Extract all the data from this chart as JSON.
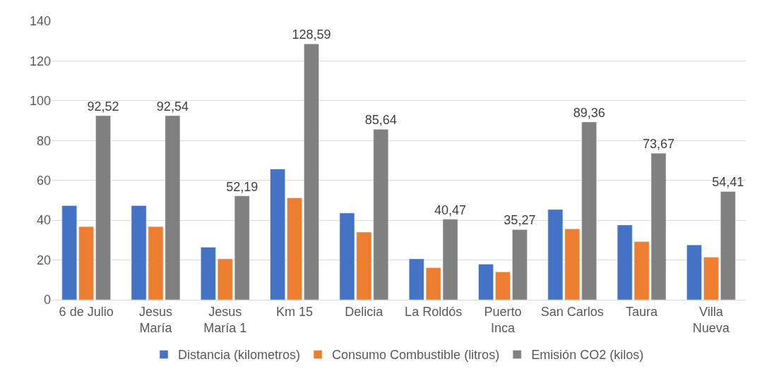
{
  "chart_data": {
    "type": "bar",
    "categories": [
      "6 de Julio",
      "Jesus María",
      "Jesus María 1",
      "Km 15",
      "Delicia",
      "La Roldós",
      "Puerto Inca",
      "San Carlos",
      "Taura",
      "Villa Nueva"
    ],
    "series": [
      {
        "name": "Distancia (kilometros)",
        "color": "#4472c4",
        "values": [
          47.3,
          47.3,
          26.4,
          65.7,
          43.6,
          20.6,
          17.9,
          45.4,
          37.6,
          27.6
        ]
      },
      {
        "name": "Consumo Combustible (litros)",
        "color": "#ed7d31",
        "values": [
          36.8,
          36.8,
          20.6,
          51.2,
          34.0,
          16.1,
          14.0,
          35.6,
          29.2,
          21.4
        ]
      },
      {
        "name": "Emisión CO2 (kilos)",
        "color": "#808080",
        "values": [
          92.52,
          92.54,
          52.19,
          128.59,
          85.64,
          40.47,
          35.27,
          89.36,
          73.67,
          54.41
        ],
        "value_labels": [
          "92,52",
          "92,54",
          "52,19",
          "128,59",
          "85,64",
          "40,47",
          "35,27",
          "89,36",
          "73,67",
          "54,41"
        ]
      }
    ],
    "ylim": [
      0,
      140
    ],
    "yticks": [
      0,
      20,
      40,
      60,
      80,
      100,
      120,
      140
    ],
    "grid": "y",
    "legend": "bottom"
  }
}
